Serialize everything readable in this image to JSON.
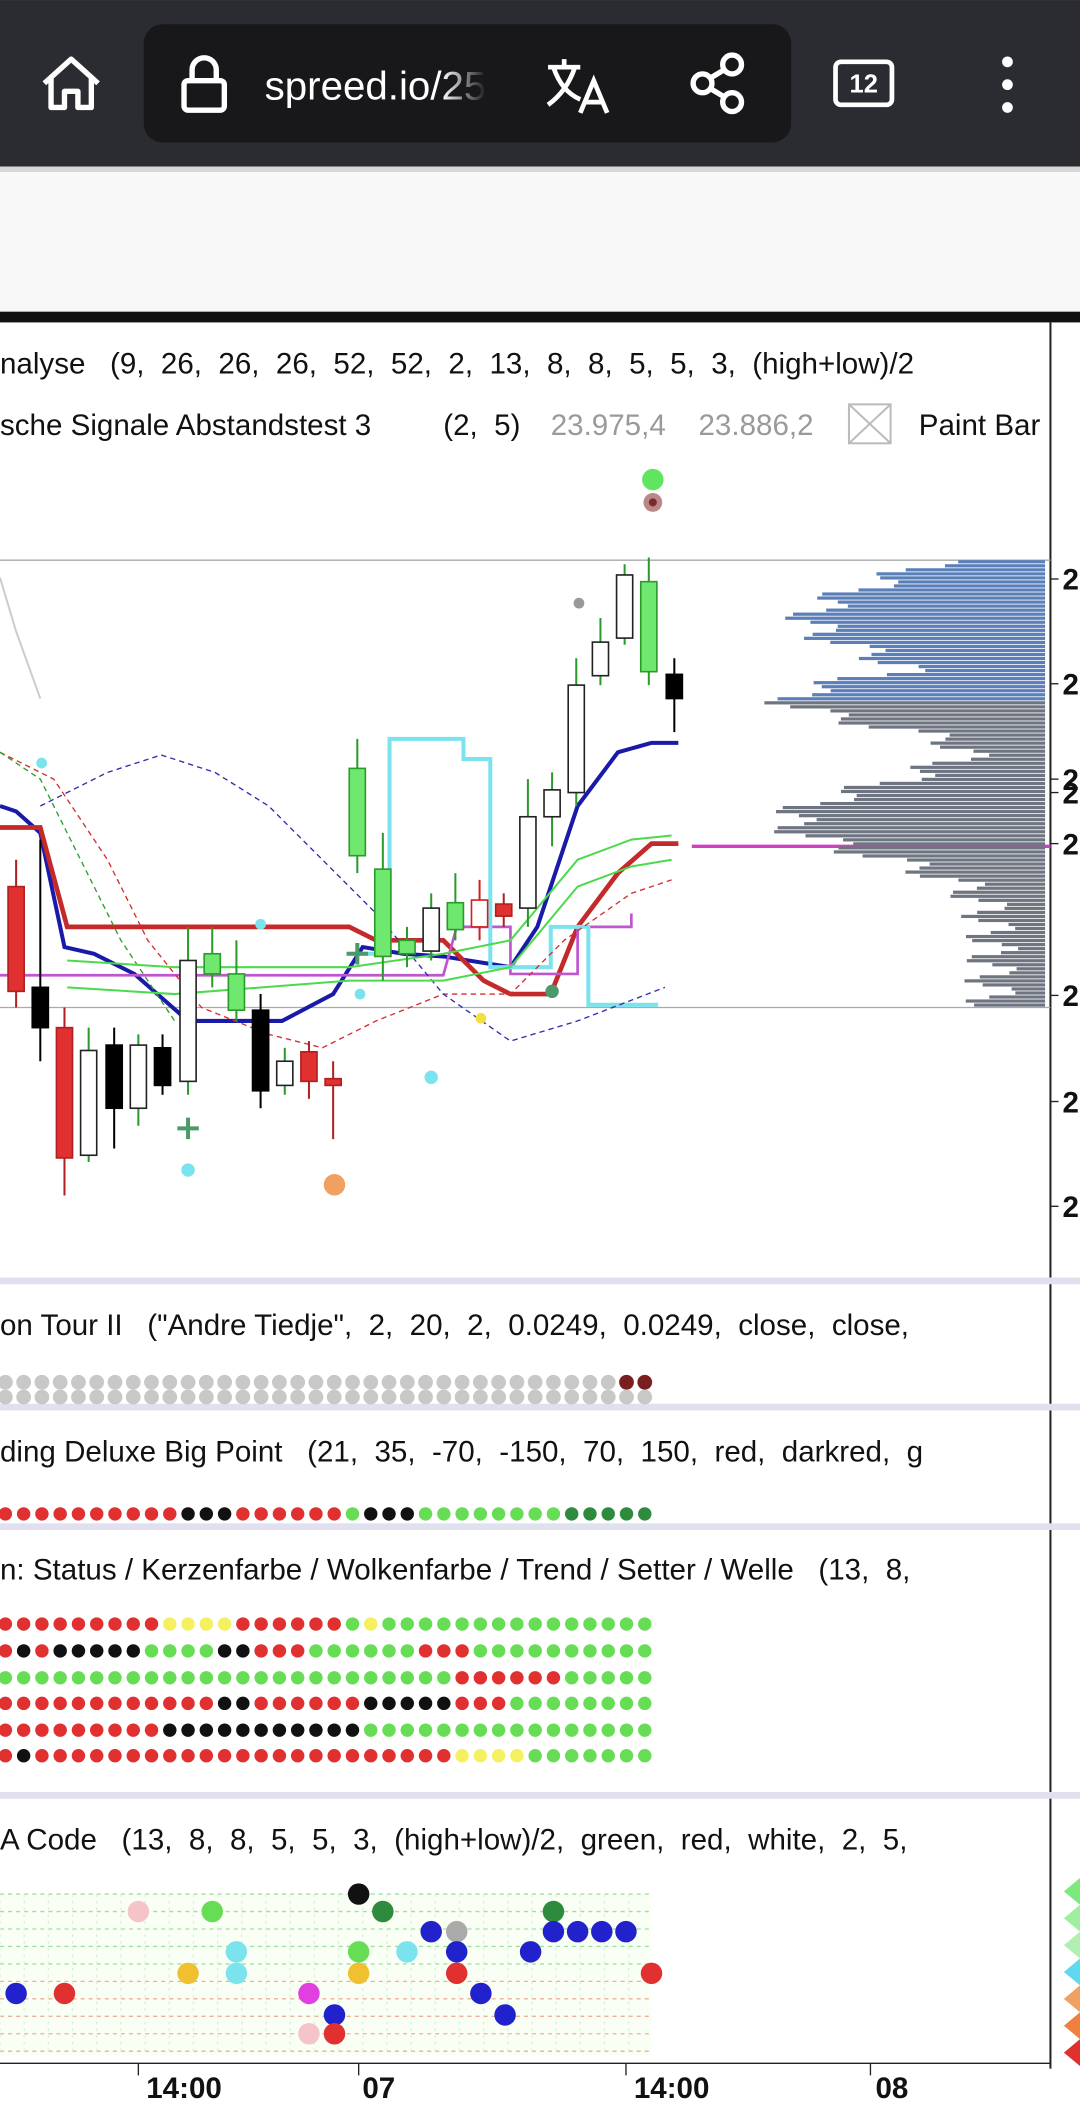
{
  "browser": {
    "url": "spreed.io/25",
    "tab_count": "12"
  },
  "main_panel": {
    "title": "nalyse   (9,  26,  26,  26,  52,  52,  2,  13,  8,  8,  5,  5,  3,  (high+low)/2",
    "signal_title": "sche Signale Abstandstest 3",
    "signal_params": "(2,  5)",
    "signal_value_1": "23.975,4",
    "signal_value_2": "23.886,2",
    "paint_bar": "Paint Bar",
    "price_labels": [
      "2",
      "2",
      "2",
      "2",
      "2",
      "2",
      "2",
      "2"
    ]
  },
  "indicators": [
    {
      "title": "on Tour II   (\"Andre Tiedje\",  2,  20,  2,  0.0249,  0.0249,  close,  close,"
    },
    {
      "title": "ding Deluxe Big Point   (21,  35,  -70,  -150,  70,  150,  red,  darkred,  g"
    },
    {
      "title": "n: Status / Kerzenfarbe / Wolkenfarbe / Trend / Setter / Welle   (13,  8,"
    },
    {
      "title": "A Code   (13,  8,  8,  5,  5,  3,  (high+low)/2,  green,  red,  white,  2,  5,"
    }
  ],
  "x_axis_labels": [
    "14:00",
    "07",
    "14:00",
    "08"
  ]
}
